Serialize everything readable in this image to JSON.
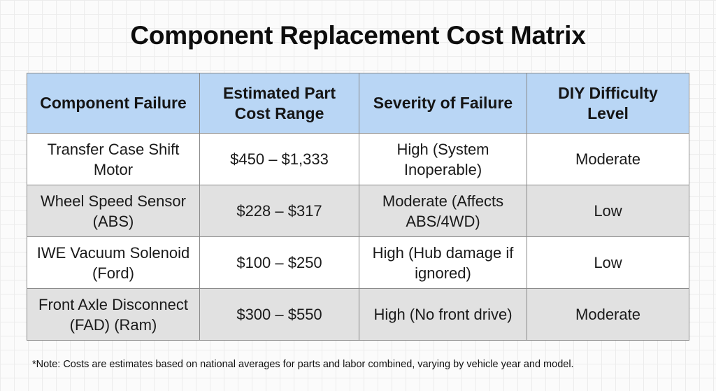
{
  "title": "Component Replacement Cost Matrix",
  "table": {
    "headers": [
      "Component Failure",
      "Estimated Part Cost Range",
      "Severity of Failure",
      "DIY Difficulty Level"
    ],
    "rows": [
      [
        "Transfer Case Shift Motor",
        "$450 – $1,333",
        "High (System Inoperable)",
        "Moderate"
      ],
      [
        "Wheel Speed Sensor (ABS)",
        "$228 – $317",
        "Moderate (Affects ABS/4WD)",
        "Low"
      ],
      [
        "IWE Vacuum Solenoid (Ford)",
        "$100 – $250",
        "High (Hub damage if ignored)",
        "Low"
      ],
      [
        "Front Axle Disconnect (FAD) (Ram)",
        "$300 – $550",
        "High (No front drive)",
        "Moderate"
      ]
    ]
  },
  "note": "*Note: Costs are estimates based on national averages for parts and labor combined, varying by vehicle year and model.",
  "colors": {
    "header_bg": "#b9d6f5",
    "row_alt_bg": "#e1e1e1",
    "row_bg": "#ffffff",
    "border": "#8a8a8a"
  }
}
